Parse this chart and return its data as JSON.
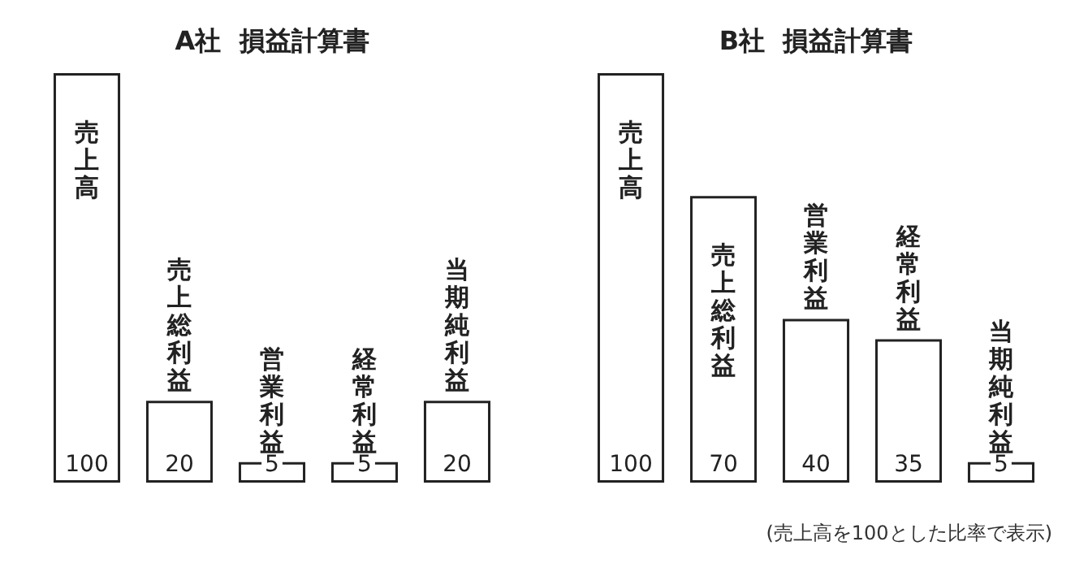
{
  "chart_data": [
    {
      "type": "bar",
      "title": "A社  損益計算書",
      "categories": [
        "売上高",
        "売上総利益",
        "営業利益",
        "経常利益",
        "当期純利益"
      ],
      "values": [
        100,
        20,
        5,
        5,
        20
      ],
      "color": "#ffffff",
      "data_labels": true
    },
    {
      "type": "bar",
      "title": "B社  損益計算書",
      "categories": [
        "売上高",
        "売上総利益",
        "営業利益",
        "経常利益",
        "当期純利益"
      ],
      "values": [
        100,
        70,
        40,
        35,
        5
      ],
      "color": "#ffffff",
      "data_labels": true,
      "annotations": [
        "(売上高を100とした比率で表示)"
      ]
    }
  ]
}
